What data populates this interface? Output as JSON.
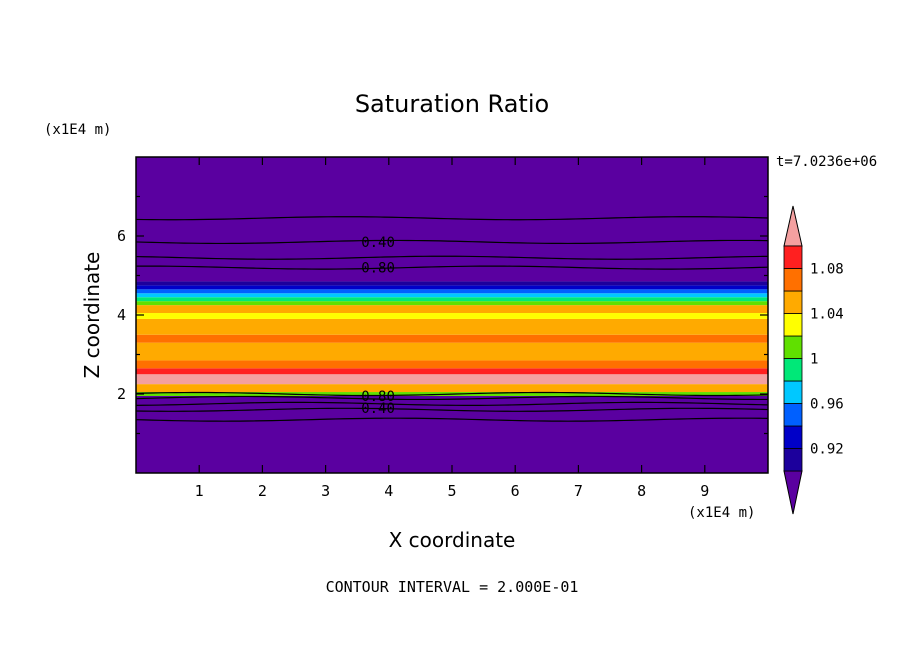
{
  "chart_data": {
    "type": "heatmap",
    "title": "Saturation Ratio",
    "xlabel": "X coordinate",
    "ylabel": "Z coordinate",
    "x_units": "(x1E4 m)",
    "y_units": "(x1E4 m)",
    "time_label": "t=7.0236e+06",
    "footer": "CONTOUR INTERVAL = 2.000E-01",
    "xlim": [
      0,
      10
    ],
    "ylim": [
      0,
      8
    ],
    "x_ticks": [
      "1",
      "2",
      "3",
      "4",
      "5",
      "6",
      "7",
      "8",
      "9"
    ],
    "y_ticks": [
      "2",
      "4",
      "6"
    ],
    "colorbar": {
      "labels": [
        "0.92",
        "0.96",
        "1",
        "1.04",
        "1.08"
      ],
      "levels": [
        0.9,
        0.92,
        0.94,
        0.96,
        0.98,
        1.0,
        1.02,
        1.04,
        1.06,
        1.08,
        1.1
      ],
      "colors": [
        "#5a00a0",
        "#1c009c",
        "#0000c8",
        "#0060ff",
        "#00c8ff",
        "#00e878",
        "#60e000",
        "#ffff00",
        "#ffaa00",
        "#ff7000",
        "#ff2020",
        "#f4a0a0"
      ]
    },
    "bands": [
      {
        "z0": 0.0,
        "z1": 1.95,
        "value": 0.5
      },
      {
        "z0": 1.95,
        "z1": 2.05,
        "value": 1.01
      },
      {
        "z0": 2.05,
        "z1": 2.25,
        "value": 1.05
      },
      {
        "z0": 2.25,
        "z1": 2.5,
        "value": 1.12
      },
      {
        "z0": 2.5,
        "z1": 2.65,
        "value": 1.09
      },
      {
        "z0": 2.65,
        "z1": 2.85,
        "value": 1.07
      },
      {
        "z0": 2.85,
        "z1": 3.3,
        "value": 1.05
      },
      {
        "z0": 3.3,
        "z1": 3.5,
        "value": 1.06
      },
      {
        "z0": 3.5,
        "z1": 3.9,
        "value": 1.05
      },
      {
        "z0": 3.9,
        "z1": 4.05,
        "value": 1.03
      },
      {
        "z0": 4.05,
        "z1": 4.25,
        "value": 1.04
      },
      {
        "z0": 4.25,
        "z1": 4.35,
        "value": 1.01
      },
      {
        "z0": 4.35,
        "z1": 4.45,
        "value": 0.99
      },
      {
        "z0": 4.45,
        "z1": 4.55,
        "value": 0.97
      },
      {
        "z0": 4.55,
        "z1": 4.65,
        "value": 0.95
      },
      {
        "z0": 4.65,
        "z1": 4.75,
        "value": 0.93
      },
      {
        "z0": 4.75,
        "z1": 4.85,
        "value": 0.91
      },
      {
        "z0": 4.85,
        "z1": 8.0,
        "value": 0.5
      }
    ],
    "contour_lines_z": [
      1.35,
      1.6,
      1.75,
      1.9,
      2.0,
      5.2,
      5.45,
      5.85,
      6.45
    ],
    "contour_labels": [
      {
        "text": "0.40",
        "x": 3.5,
        "z": 5.85
      },
      {
        "text": "0.80",
        "x": 3.5,
        "z": 5.2
      },
      {
        "text": "0.80",
        "x": 3.5,
        "z": 1.95
      },
      {
        "text": "0.40",
        "x": 3.5,
        "z": 1.65
      }
    ]
  }
}
